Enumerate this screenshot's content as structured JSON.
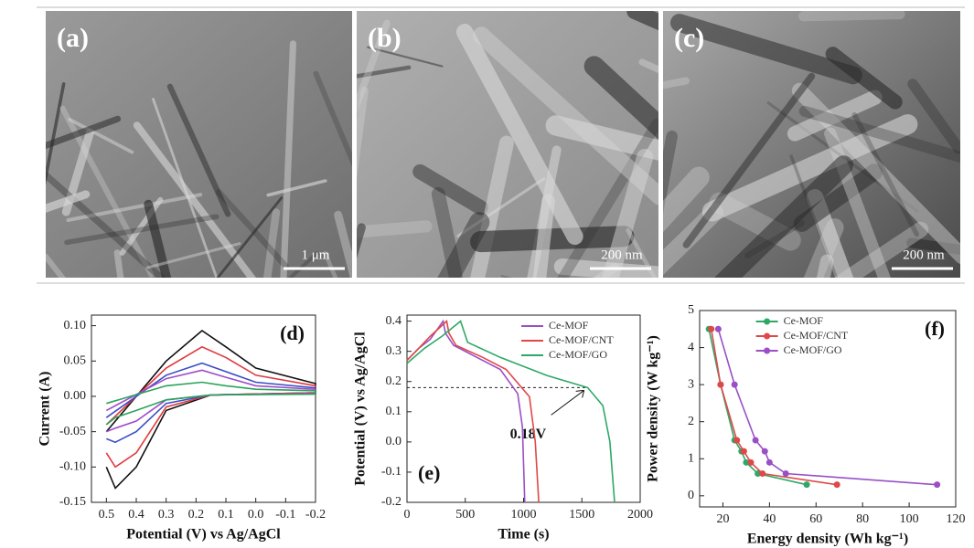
{
  "images": [
    {
      "label": "(a)",
      "scale": "1 μm"
    },
    {
      "label": "(b)",
      "scale": "200 nm"
    },
    {
      "label": "(c)",
      "scale": "200 nm"
    }
  ],
  "chart_data": [
    {
      "type": "line",
      "panel_label": "(d)",
      "panel_label_corner": "upper right",
      "x_label": "Potential (V) vs Ag/AgCl",
      "y_label": "Current (A)",
      "x": [
        0.5,
        0.47,
        0.4,
        0.3,
        0.15,
        -0.2,
        -0.2,
        0.0,
        0.1,
        0.18,
        0.3,
        0.5
      ],
      "xlim": [
        0.55,
        -0.2
      ],
      "ylim": [
        -0.15,
        0.115
      ],
      "xticks": [
        0.5,
        0.4,
        0.3,
        0.2,
        0.1,
        {
          "value": 0,
          "label": "0.0"
        },
        -0.1,
        -0.2
      ],
      "yticks": [
        {
          "value": 0.1,
          "label": "0.10"
        },
        {
          "value": 0.05,
          "label": "0.05"
        },
        {
          "value": 0,
          "label": "0.00"
        },
        {
          "value": -0.05,
          "label": "-0.05"
        },
        {
          "value": -0.1,
          "label": "-0.10"
        },
        {
          "value": -0.15,
          "label": "-0.15"
        }
      ],
      "series": [
        {
          "color": "#111111",
          "values": [
            -0.1,
            -0.13,
            -0.1,
            -0.02,
            0.002,
            0.005,
            0.018,
            0.04,
            0.07,
            0.093,
            0.05,
            -0.05
          ]
        },
        {
          "color": "#e0393e",
          "values": [
            -0.08,
            -0.1,
            -0.08,
            -0.015,
            0.002,
            0.005,
            0.015,
            0.03,
            0.055,
            0.07,
            0.04,
            -0.04
          ]
        },
        {
          "color": "#3a4fc4",
          "values": [
            -0.06,
            -0.065,
            -0.05,
            -0.01,
            0.002,
            0.004,
            0.012,
            0.02,
            0.035,
            0.047,
            0.03,
            -0.03
          ]
        },
        {
          "color": "#a04bc8",
          "values": [
            -0.05,
            -0.045,
            -0.035,
            -0.005,
            0.002,
            0.004,
            0.01,
            0.015,
            0.027,
            0.037,
            0.025,
            -0.02
          ]
        },
        {
          "color": "#2aa35a",
          "values": [
            -0.04,
            -0.03,
            -0.02,
            -0.005,
            0.002,
            0.003,
            0.008,
            0.01,
            0.015,
            0.02,
            0.015,
            -0.01
          ]
        }
      ]
    },
    {
      "type": "line",
      "panel_label": "(e)",
      "panel_label_corner": "lower left",
      "legend": "upper right",
      "x_label": "Time (s)",
      "y_label": "Potential (V) vs Ag/AgCl",
      "xlim": [
        0,
        2000
      ],
      "ylim": [
        -0.2,
        0.42
      ],
      "xticks": [
        0,
        500,
        1000,
        1500,
        2000
      ],
      "yticks": [
        -0.2,
        -0.1,
        {
          "value": 0,
          "label": "0.0"
        },
        0.1,
        0.2,
        0.3,
        0.4
      ],
      "reference_line": {
        "value": 0.18,
        "label": "0.18V",
        "x_end": 1550
      },
      "series": [
        {
          "name": "Ce-MOF",
          "color": "#9a4fc6",
          "x": [
            0,
            100,
            200,
            310,
            330,
            400,
            600,
            800,
            950,
            990,
            1010
          ],
          "values": [
            0.27,
            0.31,
            0.34,
            0.4,
            0.36,
            0.32,
            0.28,
            0.24,
            0.16,
            0.05,
            -0.2
          ]
        },
        {
          "name": "Ce-MOF/CNT",
          "color": "#e04848",
          "x": [
            0,
            100,
            200,
            340,
            360,
            420,
            650,
            850,
            1050,
            1100,
            1130
          ],
          "values": [
            0.27,
            0.31,
            0.35,
            0.4,
            0.36,
            0.32,
            0.28,
            0.24,
            0.15,
            0.0,
            -0.2
          ]
        },
        {
          "name": "Ce-MOF/GO",
          "color": "#2ea866",
          "x": [
            0,
            150,
            300,
            460,
            520,
            800,
            1200,
            1550,
            1680,
            1740,
            1780
          ],
          "values": [
            0.26,
            0.31,
            0.35,
            0.4,
            0.33,
            0.28,
            0.22,
            0.18,
            0.12,
            0.0,
            -0.2
          ]
        }
      ]
    },
    {
      "type": "line",
      "markers": true,
      "panel_label": "(f)",
      "panel_label_corner": "upper right",
      "legend": "upper center",
      "x_label": "Energy density (Wh kg⁻¹)",
      "y_label": "Power density (W kg⁻¹)",
      "xlim": [
        10,
        120
      ],
      "ylim": [
        -0.3,
        5
      ],
      "xticks": [
        20,
        40,
        60,
        80,
        100,
        120
      ],
      "yticks": [
        0,
        1,
        2,
        3,
        4,
        5
      ],
      "series": [
        {
          "name": "Ce-MOF",
          "color": "#2ea866",
          "x": [
            14,
            19,
            25,
            28,
            30,
            35,
            56
          ],
          "values": [
            4.5,
            3,
            1.5,
            1.2,
            0.9,
            0.6,
            0.3
          ]
        },
        {
          "name": "Ce-MOF/CNT",
          "color": "#e04848",
          "x": [
            15,
            19,
            26,
            29,
            32,
            37,
            69
          ],
          "values": [
            4.5,
            3,
            1.5,
            1.2,
            0.9,
            0.6,
            0.3
          ]
        },
        {
          "name": "Ce-MOF/GO",
          "color": "#9a4fc6",
          "x": [
            18,
            25,
            34,
            38,
            40,
            47,
            112
          ],
          "values": [
            4.5,
            3,
            1.5,
            1.2,
            0.9,
            0.6,
            0.3
          ]
        }
      ]
    }
  ]
}
